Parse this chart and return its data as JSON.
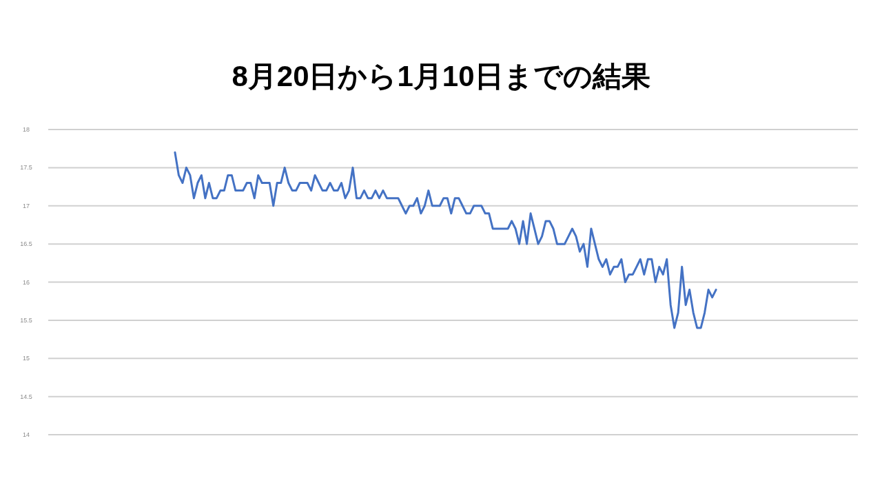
{
  "chart_data": {
    "type": "line",
    "title": "8月20日から1月10日までの結果",
    "categories": [
      null,
      null,
      null,
      null,
      null,
      null,
      null,
      null,
      null,
      null,
      null,
      null,
      null,
      null,
      null,
      null,
      null,
      null,
      null,
      null,
      null,
      null,
      null,
      null,
      null,
      null,
      null,
      null,
      null,
      null,
      null,
      null,
      null,
      null,
      null,
      null,
      null,
      null,
      null,
      null,
      null,
      null,
      null,
      null,
      null,
      null,
      null,
      null,
      null,
      null,
      null,
      null,
      null,
      null,
      null,
      null,
      null,
      null,
      null,
      null,
      null,
      null,
      null,
      null,
      null,
      null,
      null,
      null,
      null,
      null,
      null,
      null,
      null,
      null,
      null,
      null,
      null,
      null,
      null,
      null,
      null,
      null,
      null,
      null,
      null,
      null,
      null,
      null,
      null,
      null,
      null,
      null,
      null,
      null,
      null,
      null,
      null,
      null,
      null,
      null,
      null,
      null,
      null,
      null,
      null,
      null,
      null,
      null,
      null,
      null,
      null,
      null,
      null,
      null,
      null,
      null,
      null,
      null,
      null,
      null,
      null,
      null,
      null,
      null,
      null,
      null,
      null,
      null,
      null,
      null,
      null,
      null,
      null,
      null,
      null,
      null,
      null,
      null,
      null,
      null,
      null,
      null,
      null,
      null,
      null,
      null,
      null,
      null,
      null,
      null,
      null,
      null,
      null,
      null,
      null,
      null,
      null,
      null,
      null,
      null,
      null,
      null,
      null,
      null,
      null,
      null,
      null,
      null,
      null,
      null,
      null,
      null,
      null,
      null,
      null,
      null,
      null,
      null,
      null,
      null,
      null,
      null,
      null,
      null,
      null,
      null,
      null,
      null,
      null,
      null,
      null,
      null,
      null,
      null,
      null,
      null,
      null,
      null,
      null,
      null,
      null,
      null,
      null,
      null,
      null,
      null,
      null,
      null,
      null,
      null,
      null,
      null,
      null,
      null
    ],
    "values": [
      null,
      null,
      null,
      null,
      null,
      null,
      null,
      null,
      null,
      null,
      null,
      null,
      null,
      null,
      null,
      null,
      null,
      null,
      null,
      null,
      null,
      null,
      null,
      null,
      null,
      null,
      null,
      null,
      null,
      null,
      null,
      null,
      null,
      17.7,
      17.4,
      17.3,
      17.5,
      17.4,
      17.1,
      17.3,
      17.4,
      17.1,
      17.3,
      17.1,
      17.1,
      17.2,
      17.2,
      17.4,
      17.4,
      17.2,
      17.2,
      17.2,
      17.3,
      17.3,
      17.1,
      17.4,
      17.3,
      17.3,
      17.3,
      17.0,
      17.3,
      17.3,
      17.5,
      17.3,
      17.2,
      17.2,
      17.3,
      17.3,
      17.3,
      17.2,
      17.4,
      17.3,
      17.2,
      17.2,
      17.3,
      17.2,
      17.2,
      17.3,
      17.1,
      17.2,
      17.5,
      17.1,
      17.1,
      17.2,
      17.1,
      17.1,
      17.2,
      17.1,
      17.2,
      17.1,
      17.1,
      17.1,
      17.1,
      17.0,
      16.9,
      17.0,
      17.0,
      17.1,
      16.9,
      17.0,
      17.2,
      17.0,
      17.0,
      17.0,
      17.1,
      17.1,
      16.9,
      17.1,
      17.1,
      17.0,
      16.9,
      16.9,
      17.0,
      17.0,
      17.0,
      16.9,
      16.9,
      16.7,
      16.7,
      16.7,
      16.7,
      16.7,
      16.8,
      16.7,
      16.5,
      16.8,
      16.5,
      16.9,
      16.7,
      16.5,
      16.6,
      16.8,
      16.8,
      16.7,
      16.5,
      16.5,
      16.5,
      16.6,
      16.7,
      16.6,
      16.4,
      16.5,
      16.2,
      16.7,
      16.5,
      16.3,
      16.2,
      16.3,
      16.1,
      16.2,
      16.2,
      16.3,
      16.0,
      16.1,
      16.1,
      16.2,
      16.3,
      16.1,
      16.3,
      16.3,
      16.0,
      16.2,
      16.1,
      16.3,
      15.7,
      15.4,
      15.6,
      16.2,
      15.7,
      15.9,
      15.6,
      15.4,
      15.4,
      15.6,
      15.9,
      15.8,
      15.9,
      null,
      null,
      null,
      null,
      null,
      null,
      null,
      null,
      null,
      null,
      null,
      null,
      null,
      null,
      null,
      null,
      null,
      null,
      null,
      null,
      null,
      null,
      null,
      null,
      null,
      null,
      null,
      null,
      null,
      null,
      null,
      null,
      null,
      null,
      null,
      null,
      null
    ],
    "color": "#4472c4",
    "ylim": [
      14,
      18
    ],
    "yticks": [
      14,
      14.5,
      15,
      15.5,
      16,
      16.5,
      17,
      17.5,
      18
    ],
    "grid": "y"
  }
}
